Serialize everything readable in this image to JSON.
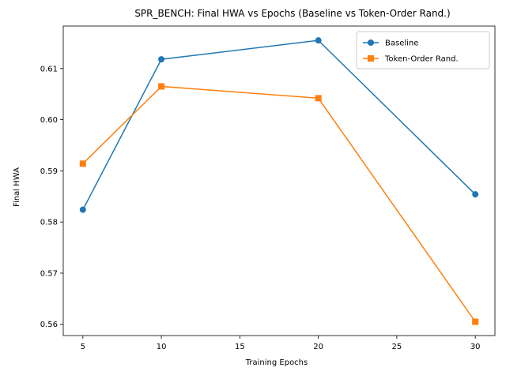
{
  "chart_data": {
    "type": "line",
    "title": "SPR_BENCH: Final HWA vs Epochs (Baseline vs Token-Order Rand.)",
    "xlabel": "Training Epochs",
    "ylabel": "Final HWA",
    "xlim": [
      3.75,
      31.25
    ],
    "ylim": [
      0.5578,
      0.6183
    ],
    "xticks": [
      5,
      10,
      15,
      20,
      25,
      30
    ],
    "yticks": [
      0.56,
      0.57,
      0.58,
      0.59,
      0.6,
      0.61
    ],
    "x": [
      5,
      10,
      20,
      30
    ],
    "grid": false,
    "legend_position": "upper right",
    "series": [
      {
        "name": "Baseline",
        "values": [
          0.5824,
          0.6118,
          0.6155,
          0.5854
        ],
        "color": "#1f77b4",
        "marker": "circle"
      },
      {
        "name": "Token-Order Rand.",
        "values": [
          0.5914,
          0.6065,
          0.6042,
          0.5605
        ],
        "color": "#ff7f0e",
        "marker": "square"
      }
    ]
  }
}
